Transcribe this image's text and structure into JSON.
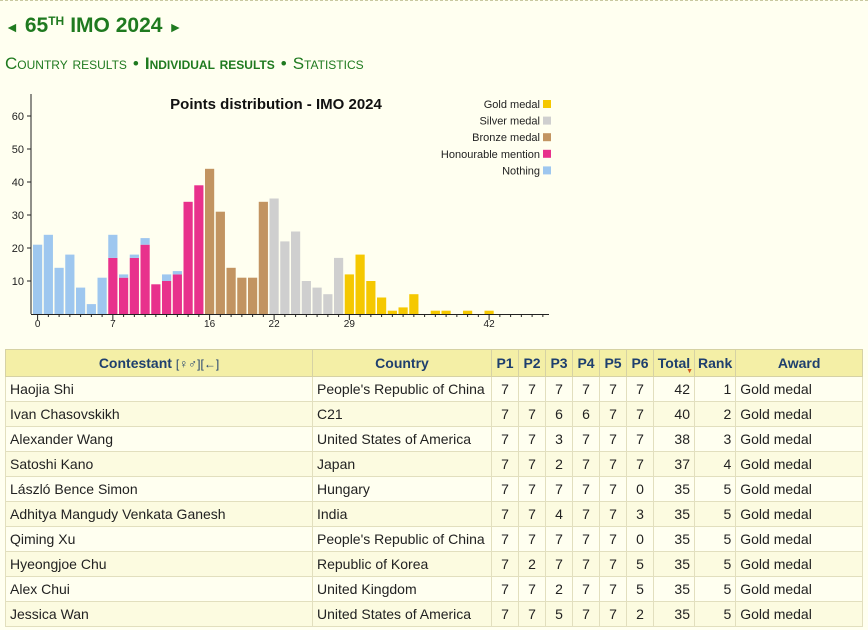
{
  "header": {
    "prev_arrow": "◄",
    "next_arrow": "►",
    "title_num": "65",
    "title_sup": "TH",
    "title_rest": "IMO 2024"
  },
  "nav": {
    "country_results": "Country results",
    "individual_results": "Individual results",
    "statistics": "Statistics",
    "sep": "•"
  },
  "chart_data": {
    "type": "bar",
    "title": "Points distribution - IMO 2024",
    "x_ticks": [
      0,
      7,
      16,
      22,
      29,
      42
    ],
    "y_ticks": [
      10,
      20,
      30,
      40,
      50,
      60
    ],
    "ylim": [
      0,
      65
    ],
    "xlim": [
      0,
      42
    ],
    "legend_position": "top-right",
    "colors": {
      "gold": "#f5c800",
      "silver": "#cfcfcf",
      "bronze": "#c29461",
      "honourable": "#e8318c",
      "nothing": "#9ec7ef"
    },
    "series": [
      {
        "name": "Gold medal",
        "key": "gold"
      },
      {
        "name": "Silver medal",
        "key": "silver"
      },
      {
        "name": "Bronze medal",
        "key": "bronze"
      },
      {
        "name": "Honourable mention",
        "key": "honourable"
      },
      {
        "name": "Nothing",
        "key": "nothing"
      }
    ],
    "bars": [
      {
        "x": 0,
        "segments": [
          {
            "key": "nothing",
            "value": 21
          }
        ]
      },
      {
        "x": 1,
        "segments": [
          {
            "key": "nothing",
            "value": 24
          }
        ]
      },
      {
        "x": 2,
        "segments": [
          {
            "key": "nothing",
            "value": 14
          }
        ]
      },
      {
        "x": 3,
        "segments": [
          {
            "key": "nothing",
            "value": 18
          }
        ]
      },
      {
        "x": 4,
        "segments": [
          {
            "key": "nothing",
            "value": 8
          }
        ]
      },
      {
        "x": 5,
        "segments": [
          {
            "key": "nothing",
            "value": 3
          }
        ]
      },
      {
        "x": 6,
        "segments": [
          {
            "key": "nothing",
            "value": 11
          }
        ]
      },
      {
        "x": 7,
        "segments": [
          {
            "key": "honourable",
            "value": 17
          },
          {
            "key": "nothing",
            "value": 7
          }
        ]
      },
      {
        "x": 8,
        "segments": [
          {
            "key": "honourable",
            "value": 11
          },
          {
            "key": "nothing",
            "value": 1
          }
        ]
      },
      {
        "x": 9,
        "segments": [
          {
            "key": "honourable",
            "value": 17
          },
          {
            "key": "nothing",
            "value": 1
          }
        ]
      },
      {
        "x": 10,
        "segments": [
          {
            "key": "honourable",
            "value": 21
          },
          {
            "key": "nothing",
            "value": 2
          }
        ]
      },
      {
        "x": 11,
        "segments": [
          {
            "key": "honourable",
            "value": 9
          }
        ]
      },
      {
        "x": 12,
        "segments": [
          {
            "key": "honourable",
            "value": 10
          },
          {
            "key": "nothing",
            "value": 2
          }
        ]
      },
      {
        "x": 13,
        "segments": [
          {
            "key": "honourable",
            "value": 12
          },
          {
            "key": "nothing",
            "value": 1
          }
        ]
      },
      {
        "x": 14,
        "segments": [
          {
            "key": "honourable",
            "value": 34
          }
        ]
      },
      {
        "x": 15,
        "segments": [
          {
            "key": "honourable",
            "value": 39
          }
        ]
      },
      {
        "x": 16,
        "segments": [
          {
            "key": "bronze",
            "value": 44
          }
        ]
      },
      {
        "x": 17,
        "segments": [
          {
            "key": "bronze",
            "value": 31
          }
        ]
      },
      {
        "x": 18,
        "segments": [
          {
            "key": "bronze",
            "value": 14
          }
        ]
      },
      {
        "x": 19,
        "segments": [
          {
            "key": "bronze",
            "value": 11
          }
        ]
      },
      {
        "x": 20,
        "segments": [
          {
            "key": "bronze",
            "value": 11
          }
        ]
      },
      {
        "x": 21,
        "segments": [
          {
            "key": "bronze",
            "value": 34
          }
        ]
      },
      {
        "x": 22,
        "segments": [
          {
            "key": "silver",
            "value": 35
          }
        ]
      },
      {
        "x": 23,
        "segments": [
          {
            "key": "silver",
            "value": 22
          }
        ]
      },
      {
        "x": 24,
        "segments": [
          {
            "key": "silver",
            "value": 25
          }
        ]
      },
      {
        "x": 25,
        "segments": [
          {
            "key": "silver",
            "value": 10
          }
        ]
      },
      {
        "x": 26,
        "segments": [
          {
            "key": "silver",
            "value": 8
          }
        ]
      },
      {
        "x": 27,
        "segments": [
          {
            "key": "silver",
            "value": 6
          }
        ]
      },
      {
        "x": 28,
        "segments": [
          {
            "key": "silver",
            "value": 17
          }
        ]
      },
      {
        "x": 29,
        "segments": [
          {
            "key": "gold",
            "value": 12
          }
        ]
      },
      {
        "x": 30,
        "segments": [
          {
            "key": "gold",
            "value": 18
          }
        ]
      },
      {
        "x": 31,
        "segments": [
          {
            "key": "gold",
            "value": 10
          }
        ]
      },
      {
        "x": 32,
        "segments": [
          {
            "key": "gold",
            "value": 5
          }
        ]
      },
      {
        "x": 33,
        "segments": [
          {
            "key": "gold",
            "value": 1
          }
        ]
      },
      {
        "x": 34,
        "segments": [
          {
            "key": "gold",
            "value": 2
          }
        ]
      },
      {
        "x": 35,
        "segments": [
          {
            "key": "gold",
            "value": 6
          }
        ]
      },
      {
        "x": 36,
        "segments": []
      },
      {
        "x": 37,
        "segments": [
          {
            "key": "gold",
            "value": 1
          }
        ]
      },
      {
        "x": 38,
        "segments": [
          {
            "key": "gold",
            "value": 1
          }
        ]
      },
      {
        "x": 39,
        "segments": []
      },
      {
        "x": 40,
        "segments": [
          {
            "key": "gold",
            "value": 1
          }
        ]
      },
      {
        "x": 41,
        "segments": []
      },
      {
        "x": 42,
        "segments": [
          {
            "key": "gold",
            "value": 1
          }
        ]
      }
    ]
  },
  "table": {
    "headers": {
      "contestant": "Contestant",
      "contestant_sort": "[♀♂][←]",
      "country": "Country",
      "p1": "P1",
      "p2": "P2",
      "p3": "P3",
      "p4": "P4",
      "p5": "P5",
      "p6": "P6",
      "total": "Total",
      "total_sort_icon": "▼",
      "rank": "Rank",
      "award": "Award"
    },
    "rows": [
      {
        "name": "Haojia Shi",
        "country": "People's Republic of China",
        "p1": "7",
        "p2": "7",
        "p3": "7",
        "p4": "7",
        "p5": "7",
        "p6": "7",
        "total": "42",
        "rank": "1",
        "award": "Gold medal"
      },
      {
        "name": "Ivan Chasovskikh",
        "country": "C21",
        "p1": "7",
        "p2": "7",
        "p3": "6",
        "p4": "6",
        "p5": "7",
        "p6": "7",
        "total": "40",
        "rank": "2",
        "award": "Gold medal"
      },
      {
        "name": "Alexander Wang",
        "country": "United States of America",
        "p1": "7",
        "p2": "7",
        "p3": "3",
        "p4": "7",
        "p5": "7",
        "p6": "7",
        "total": "38",
        "rank": "3",
        "award": "Gold medal"
      },
      {
        "name": "Satoshi Kano",
        "country": "Japan",
        "p1": "7",
        "p2": "7",
        "p3": "2",
        "p4": "7",
        "p5": "7",
        "p6": "7",
        "total": "37",
        "rank": "4",
        "award": "Gold medal"
      },
      {
        "name": "László Bence Simon",
        "country": "Hungary",
        "p1": "7",
        "p2": "7",
        "p3": "7",
        "p4": "7",
        "p5": "7",
        "p6": "0",
        "total": "35",
        "rank": "5",
        "award": "Gold medal"
      },
      {
        "name": "Adhitya Mangudy Venkata Ganesh",
        "country": "India",
        "p1": "7",
        "p2": "7",
        "p3": "4",
        "p4": "7",
        "p5": "7",
        "p6": "3",
        "total": "35",
        "rank": "5",
        "award": "Gold medal"
      },
      {
        "name": "Qiming Xu",
        "country": "People's Republic of China",
        "p1": "7",
        "p2": "7",
        "p3": "7",
        "p4": "7",
        "p5": "7",
        "p6": "0",
        "total": "35",
        "rank": "5",
        "award": "Gold medal"
      },
      {
        "name": "Hyeongjoe Chu",
        "country": "Republic of Korea",
        "p1": "7",
        "p2": "2",
        "p3": "7",
        "p4": "7",
        "p5": "7",
        "p6": "5",
        "total": "35",
        "rank": "5",
        "award": "Gold medal"
      },
      {
        "name": "Alex Chui",
        "country": "United Kingdom",
        "p1": "7",
        "p2": "7",
        "p3": "2",
        "p4": "7",
        "p5": "7",
        "p6": "5",
        "total": "35",
        "rank": "5",
        "award": "Gold medal"
      },
      {
        "name": "Jessica Wan",
        "country": "United States of America",
        "p1": "7",
        "p2": "7",
        "p3": "5",
        "p4": "7",
        "p5": "7",
        "p6": "2",
        "total": "35",
        "rank": "5",
        "award": "Gold medal"
      }
    ]
  }
}
